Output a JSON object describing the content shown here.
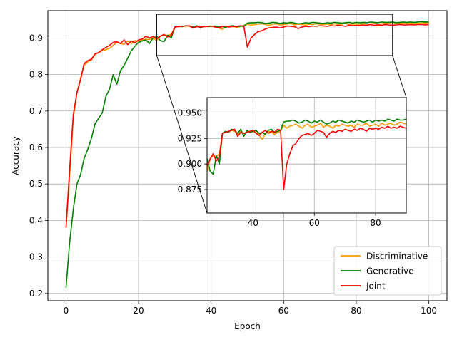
{
  "chart_data": {
    "type": "line",
    "xlabel": "Epoch",
    "ylabel": "Accuracy",
    "xlim": [
      -5,
      105
    ],
    "ylim": [
      0.18,
      0.975
    ],
    "xticks": [
      0,
      20,
      40,
      60,
      80,
      100
    ],
    "xtick_labels": [
      "0",
      "20",
      "40",
      "60",
      "80",
      "100"
    ],
    "yticks": [
      0.2,
      0.3,
      0.4,
      0.5,
      0.6,
      0.7,
      0.8,
      0.9
    ],
    "ytick_labels": [
      "0.2",
      "0.3",
      "0.4",
      "0.5",
      "0.6",
      "0.7",
      "0.8",
      "0.9"
    ],
    "grid": true,
    "legend_position": "lower-right",
    "series": [
      {
        "name": "Discriminative",
        "color": "#ff9900",
        "x": [
          0,
          1,
          2,
          3,
          4,
          5,
          6,
          7,
          8,
          9,
          10,
          11,
          12,
          13,
          14,
          15,
          16,
          17,
          18,
          19,
          20,
          21,
          22,
          23,
          24,
          25,
          26,
          27,
          28,
          29,
          30,
          31,
          32,
          33,
          34,
          35,
          36,
          37,
          38,
          39,
          40,
          41,
          42,
          43,
          44,
          45,
          46,
          47,
          48,
          49,
          50,
          51,
          52,
          53,
          54,
          55,
          56,
          57,
          58,
          59,
          60,
          61,
          62,
          63,
          64,
          65,
          66,
          67,
          68,
          69,
          70,
          71,
          72,
          73,
          74,
          75,
          76,
          77,
          78,
          79,
          80,
          81,
          82,
          83,
          84,
          85,
          86,
          87,
          88,
          89,
          90,
          91,
          92,
          93,
          94,
          95,
          96,
          97,
          98,
          99,
          100
        ],
        "y": [
          0.38,
          0.52,
          0.68,
          0.75,
          0.79,
          0.825,
          0.835,
          0.84,
          0.855,
          0.86,
          0.865,
          0.868,
          0.872,
          0.88,
          0.888,
          0.885,
          0.883,
          0.892,
          0.885,
          0.893,
          0.89,
          0.895,
          0.897,
          0.896,
          0.9,
          0.893,
          0.905,
          0.908,
          0.907,
          0.91,
          0.93,
          0.932,
          0.931,
          0.933,
          0.932,
          0.929,
          0.932,
          0.93,
          0.931,
          0.932,
          0.931,
          0.933,
          0.928,
          0.924,
          0.93,
          0.932,
          0.931,
          0.929,
          0.931,
          0.932,
          0.938,
          0.935,
          0.937,
          0.938,
          0.939,
          0.937,
          0.935,
          0.938,
          0.939,
          0.936,
          0.937,
          0.938,
          0.94,
          0.936,
          0.938,
          0.937,
          0.935,
          0.938,
          0.937,
          0.939,
          0.938,
          0.937,
          0.938,
          0.936,
          0.939,
          0.938,
          0.938,
          0.94,
          0.937,
          0.938,
          0.939,
          0.937,
          0.94,
          0.938,
          0.939,
          0.94,
          0.938,
          0.939,
          0.941,
          0.94,
          0.939,
          0.94,
          0.941,
          0.94,
          0.941,
          0.94,
          0.942,
          0.94,
          0.941,
          0.942,
          0.941
        ]
      },
      {
        "name": "Generative",
        "color": "#008000",
        "x": [
          0,
          1,
          2,
          3,
          4,
          5,
          6,
          7,
          8,
          9,
          10,
          11,
          12,
          13,
          14,
          15,
          16,
          17,
          18,
          19,
          20,
          21,
          22,
          23,
          24,
          25,
          26,
          27,
          28,
          29,
          30,
          31,
          32,
          33,
          34,
          35,
          36,
          37,
          38,
          39,
          40,
          41,
          42,
          43,
          44,
          45,
          46,
          47,
          48,
          49,
          50,
          51,
          52,
          53,
          54,
          55,
          56,
          57,
          58,
          59,
          60,
          61,
          62,
          63,
          64,
          65,
          66,
          67,
          68,
          69,
          70,
          71,
          72,
          73,
          74,
          75,
          76,
          77,
          78,
          79,
          80,
          81,
          82,
          83,
          84,
          85,
          86,
          87,
          88,
          89,
          90,
          91,
          92,
          93,
          94,
          95,
          96,
          97,
          98,
          99,
          100
        ],
        "y": [
          0.215,
          0.34,
          0.43,
          0.5,
          0.525,
          0.57,
          0.595,
          0.625,
          0.665,
          0.68,
          0.695,
          0.74,
          0.76,
          0.8,
          0.773,
          0.81,
          0.825,
          0.845,
          0.865,
          0.878,
          0.888,
          0.892,
          0.895,
          0.885,
          0.9,
          0.905,
          0.893,
          0.89,
          0.908,
          0.9,
          0.93,
          0.932,
          0.931,
          0.934,
          0.933,
          0.93,
          0.934,
          0.927,
          0.933,
          0.931,
          0.932,
          0.933,
          0.93,
          0.931,
          0.929,
          0.933,
          0.934,
          0.931,
          0.932,
          0.933,
          0.941,
          0.942,
          0.942,
          0.943,
          0.942,
          0.94,
          0.941,
          0.943,
          0.942,
          0.94,
          0.942,
          0.941,
          0.943,
          0.941,
          0.939,
          0.94,
          0.942,
          0.941,
          0.943,
          0.942,
          0.941,
          0.94,
          0.942,
          0.941,
          0.943,
          0.942,
          0.941,
          0.942,
          0.943,
          0.941,
          0.943,
          0.942,
          0.943,
          0.942,
          0.944,
          0.943,
          0.942,
          0.944,
          0.943,
          0.943,
          0.944,
          0.942,
          0.943,
          0.944,
          0.943,
          0.944,
          0.943,
          0.944,
          0.945,
          0.944,
          0.944
        ]
      },
      {
        "name": "Joint",
        "color": "#ff0000",
        "x": [
          0,
          1,
          2,
          3,
          4,
          5,
          6,
          7,
          8,
          9,
          10,
          11,
          12,
          13,
          14,
          15,
          16,
          17,
          18,
          19,
          20,
          21,
          22,
          23,
          24,
          25,
          26,
          27,
          28,
          29,
          30,
          31,
          32,
          33,
          34,
          35,
          36,
          37,
          38,
          39,
          40,
          41,
          42,
          43,
          44,
          45,
          46,
          47,
          48,
          49,
          50,
          51,
          52,
          53,
          54,
          55,
          56,
          57,
          58,
          59,
          60,
          61,
          62,
          63,
          64,
          65,
          66,
          67,
          68,
          69,
          70,
          71,
          72,
          73,
          74,
          75,
          76,
          77,
          78,
          79,
          80,
          81,
          82,
          83,
          84,
          85,
          86,
          87,
          88,
          89,
          90,
          91,
          92,
          93,
          94,
          95,
          96,
          97,
          98,
          99,
          100
        ],
        "y": [
          0.38,
          0.54,
          0.69,
          0.75,
          0.785,
          0.83,
          0.838,
          0.842,
          0.857,
          0.86,
          0.868,
          0.874,
          0.88,
          0.888,
          0.89,
          0.885,
          0.895,
          0.882,
          0.892,
          0.887,
          0.895,
          0.897,
          0.905,
          0.9,
          0.904,
          0.898,
          0.905,
          0.91,
          0.903,
          0.907,
          0.93,
          0.931,
          0.932,
          0.933,
          0.934,
          0.927,
          0.931,
          0.93,
          0.931,
          0.932,
          0.933,
          0.93,
          0.928,
          0.931,
          0.933,
          0.93,
          0.932,
          0.931,
          0.934,
          0.933,
          0.875,
          0.9,
          0.91,
          0.918,
          0.92,
          0.925,
          0.928,
          0.929,
          0.93,
          0.928,
          0.93,
          0.933,
          0.932,
          0.931,
          0.926,
          0.93,
          0.932,
          0.931,
          0.933,
          0.932,
          0.934,
          0.933,
          0.932,
          0.934,
          0.933,
          0.935,
          0.934,
          0.932,
          0.935,
          0.934,
          0.935,
          0.934,
          0.936,
          0.935,
          0.937,
          0.935,
          0.936,
          0.935,
          0.937,
          0.936,
          0.935,
          0.936,
          0.937,
          0.936,
          0.936,
          0.937,
          0.936,
          0.937,
          0.937,
          0.936,
          0.937
        ]
      }
    ],
    "inset": {
      "xlim": [
        25,
        90
      ],
      "ylim": [
        0.852,
        0.965
      ],
      "xticks": [
        40,
        60,
        80
      ],
      "xtick_labels": [
        "40",
        "60",
        "80"
      ],
      "yticks": [
        0.875,
        0.9,
        0.925,
        0.95
      ],
      "ytick_labels": [
        "0.875",
        "0.900",
        "0.925",
        "0.950"
      ],
      "grid": true
    }
  }
}
